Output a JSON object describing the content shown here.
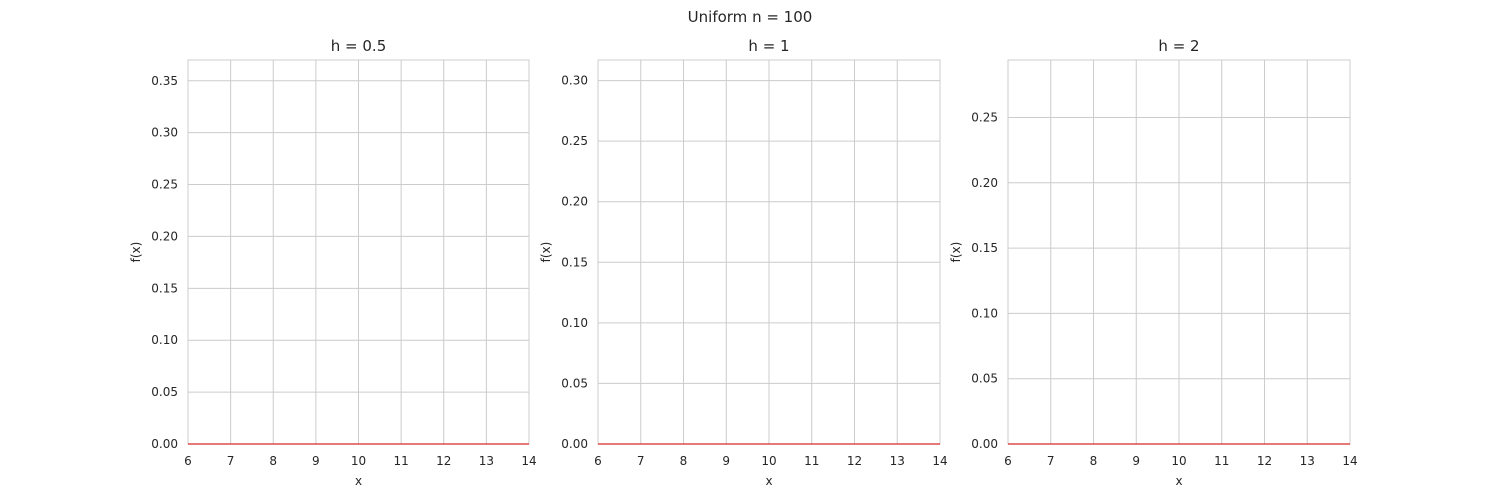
{
  "figure": {
    "suptitle": "Uniform n = 100"
  },
  "chart_data": [
    {
      "type": "line",
      "title": "h = 0.5",
      "xlabel": "x",
      "ylabel": "f(x)",
      "xlim": [
        6,
        14
      ],
      "ylim": [
        0,
        0.37
      ],
      "xticks": [
        6,
        7,
        8,
        9,
        10,
        11,
        12,
        13,
        14
      ],
      "yticks": [
        0.0,
        0.05,
        0.1,
        0.15,
        0.2,
        0.25,
        0.3,
        0.35
      ],
      "xtick_labels": [
        "6",
        "7",
        "8",
        "9",
        "10",
        "11",
        "12",
        "13",
        "14"
      ],
      "ytick_labels": [
        "0.00",
        "0.05",
        "0.10",
        "0.15",
        "0.20",
        "0.25",
        "0.30",
        "0.35"
      ],
      "grid": true,
      "series": [
        {
          "color": "#d62728",
          "x": [
            6,
            14
          ],
          "y": [
            0,
            0
          ]
        }
      ]
    },
    {
      "type": "line",
      "title": "h = 1",
      "xlabel": "x",
      "ylabel": "f(x)",
      "xlim": [
        6,
        14
      ],
      "ylim": [
        0,
        0.317
      ],
      "xticks": [
        6,
        7,
        8,
        9,
        10,
        11,
        12,
        13,
        14
      ],
      "yticks": [
        0.0,
        0.05,
        0.1,
        0.15,
        0.2,
        0.25,
        0.3
      ],
      "xtick_labels": [
        "6",
        "7",
        "8",
        "9",
        "10",
        "11",
        "12",
        "13",
        "14"
      ],
      "ytick_labels": [
        "0.00",
        "0.05",
        "0.10",
        "0.15",
        "0.20",
        "0.25",
        "0.30"
      ],
      "grid": true,
      "series": [
        {
          "color": "#d62728",
          "x": [
            6,
            14
          ],
          "y": [
            0,
            0
          ]
        }
      ]
    },
    {
      "type": "line",
      "title": "h = 2",
      "xlabel": "x",
      "ylabel": "f(x)",
      "xlim": [
        6,
        14
      ],
      "ylim": [
        0,
        0.294
      ],
      "xticks": [
        6,
        7,
        8,
        9,
        10,
        11,
        12,
        13,
        14
      ],
      "yticks": [
        0.0,
        0.05,
        0.1,
        0.15,
        0.2,
        0.25
      ],
      "xtick_labels": [
        "6",
        "7",
        "8",
        "9",
        "10",
        "11",
        "12",
        "13",
        "14"
      ],
      "ytick_labels": [
        "0.00",
        "0.05",
        "0.10",
        "0.15",
        "0.20",
        "0.25"
      ],
      "grid": true,
      "series": [
        {
          "color": "#d62728",
          "x": [
            6,
            14
          ],
          "y": [
            0,
            0
          ]
        }
      ]
    }
  ]
}
